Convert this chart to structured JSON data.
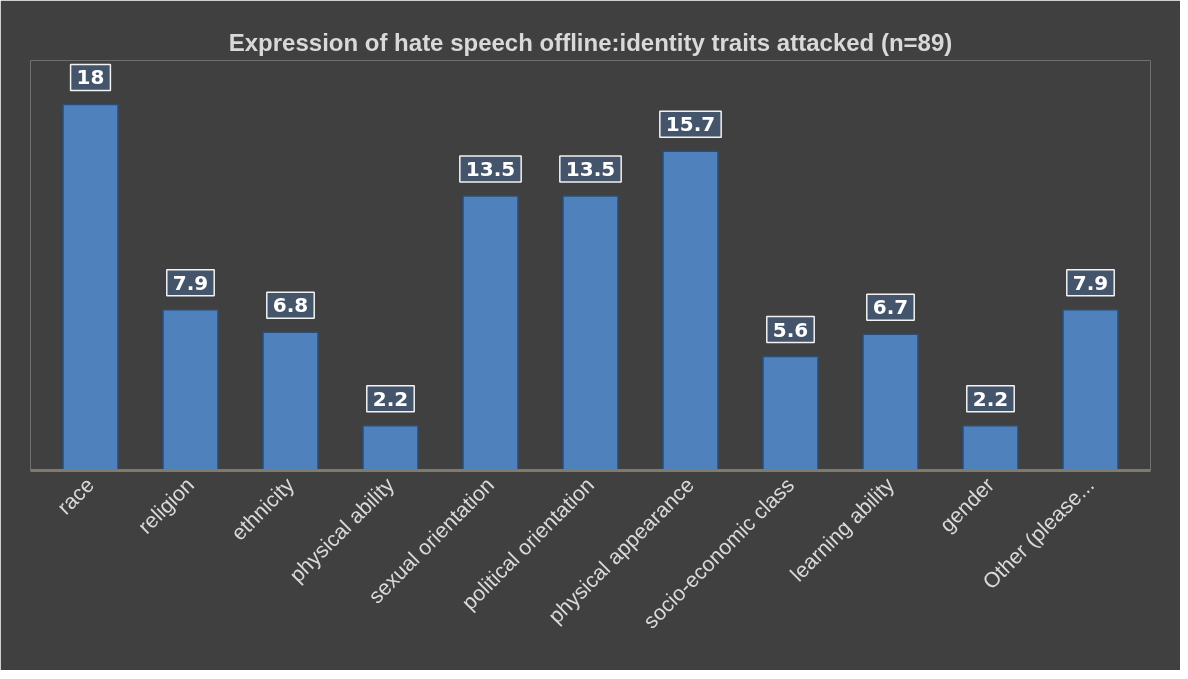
{
  "chart_data": {
    "type": "bar",
    "title": "Expression of hate speech offline:identity traits attacked (n=89)",
    "categories": [
      "race",
      "religion",
      "ethnicity",
      "physical ability",
      "sexual orientation",
      "political orientation",
      "physical appearance",
      "socio-economic class",
      "learning ability",
      "gender",
      "Other (please..."
    ],
    "values": [
      18,
      7.9,
      6.8,
      2.2,
      13.5,
      13.5,
      15.7,
      5.6,
      6.7,
      2.2,
      7.9
    ],
    "color": "#4f81bd",
    "data_labels": true
  }
}
